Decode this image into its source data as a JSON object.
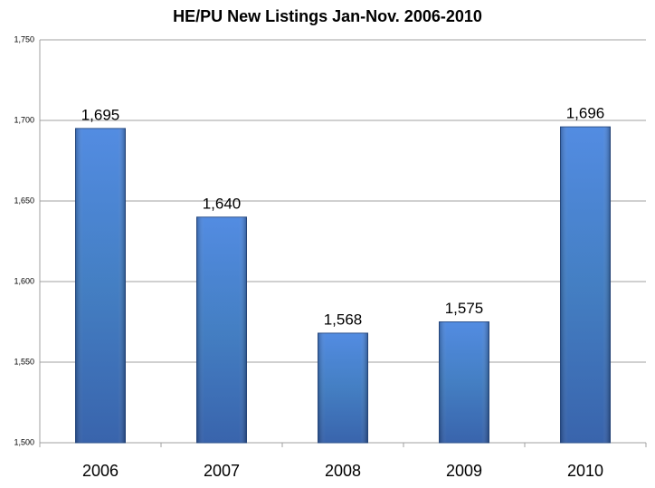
{
  "chart_data": {
    "type": "bar",
    "title": "HE/PU New Listings Jan-Nov. 2006-2010",
    "categories": [
      "2006",
      "2007",
      "2008",
      "2009",
      "2010"
    ],
    "values": [
      1695,
      1640,
      1568,
      1575,
      1696
    ],
    "value_labels": [
      "1,695",
      "1,640",
      "1,568",
      "1,575",
      "1,696"
    ],
    "color": "#3f78c8",
    "ylim": [
      1500,
      1750
    ],
    "yticks": [
      {
        "value": 1500,
        "label": "1,500"
      },
      {
        "value": 1550,
        "label": "1,550"
      },
      {
        "value": 1600,
        "label": "1,600"
      },
      {
        "value": 1650,
        "label": "1,650"
      },
      {
        "value": 1700,
        "label": "1,700"
      },
      {
        "value": 1750,
        "label": "1,750"
      }
    ],
    "grid": true
  }
}
